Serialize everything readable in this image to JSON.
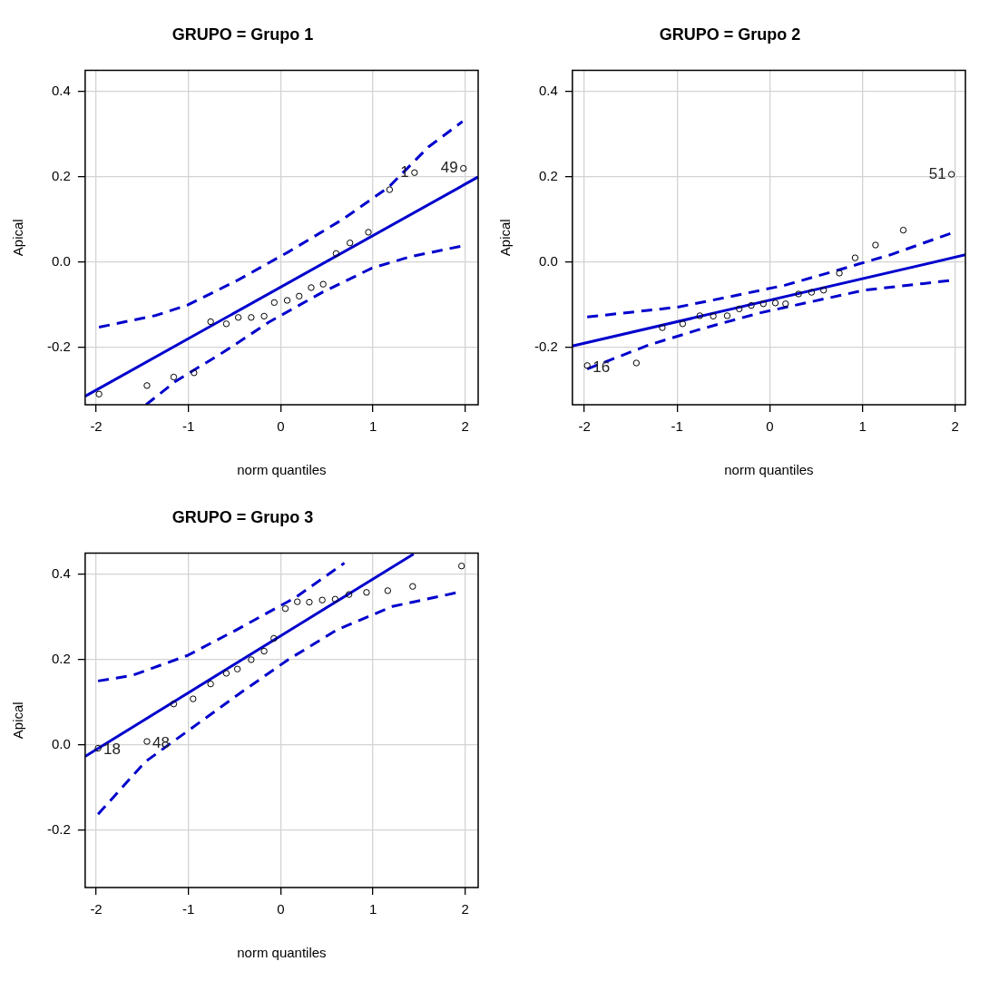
{
  "chart_data": [
    {
      "type": "scatter",
      "title": "GRUPO = Grupo 1",
      "xlabel": "norm quantiles",
      "ylabel": "Apical",
      "xlim": [
        -2.12,
        2.14
      ],
      "ylim": [
        -0.335,
        0.45
      ],
      "xticks": [
        -2,
        -1,
        0,
        1,
        2
      ],
      "yticks": [
        {
          "value": -0.2,
          "label": "-0.2"
        },
        {
          "value": 0,
          "label": "0.0"
        },
        {
          "value": 0.2,
          "label": "0.2"
        },
        {
          "value": 0.4,
          "label": "0.4"
        }
      ],
      "grid": true,
      "marker": "circle",
      "series": [
        {
          "type": "scatter",
          "color": "#000000",
          "x": [
            -1.97,
            -1.45,
            -1.16,
            -0.94,
            -0.76,
            -0.59,
            -0.46,
            -0.32,
            -0.18,
            -0.07,
            0.07,
            0.2,
            0.33,
            0.46,
            0.6,
            0.75,
            0.95,
            1.18,
            1.45,
            1.98
          ],
          "values": [
            -0.31,
            -0.29,
            -0.27,
            -0.26,
            -0.14,
            -0.145,
            -0.13,
            -0.13,
            -0.127,
            -0.095,
            -0.09,
            -0.08,
            -0.06,
            -0.052,
            0.02,
            0.045,
            0.07,
            0.17,
            0.21,
            0.22
          ]
        },
        {
          "type": "line",
          "color": "#0000cd",
          "line_style": "solid",
          "marker": "none",
          "x": [
            -2.12,
            2.14
          ],
          "values": [
            -0.315,
            0.2
          ]
        },
        {
          "type": "line",
          "color": "#0000cd",
          "line_style": "dashed",
          "marker": "none",
          "x": [
            -1.97,
            -1.35,
            -1.0,
            -0.47,
            0.1,
            0.67,
            1.17,
            1.6,
            1.97
          ],
          "values": [
            -0.153,
            -0.125,
            -0.1,
            -0.043,
            0.026,
            0.1,
            0.176,
            0.27,
            0.33
          ]
        },
        {
          "type": "line",
          "color": "#0000cd",
          "line_style": "dashed",
          "marker": "none",
          "x": [
            -1.46,
            -1.14,
            -0.61,
            -0.12,
            0.46,
            0.99,
            1.41,
            1.97
          ],
          "values": [
            -0.335,
            -0.28,
            -0.21,
            -0.14,
            -0.07,
            -0.014,
            0.013,
            0.038
          ]
        }
      ],
      "annotations": [
        {
          "text": "1",
          "x": 1.45,
          "y": 0.21
        },
        {
          "text": "49",
          "x": 1.98,
          "y": 0.22
        }
      ]
    },
    {
      "type": "scatter",
      "title": "GRUPO = Grupo 2",
      "xlabel": "norm quantiles",
      "ylabel": "Apical",
      "xlim": [
        -2.13,
        2.11
      ],
      "ylim": [
        -0.335,
        0.45
      ],
      "xticks": [
        -2,
        -1,
        0,
        1,
        2
      ],
      "yticks": [
        {
          "value": -0.2,
          "label": "-0.2"
        },
        {
          "value": 0,
          "label": "0.0"
        },
        {
          "value": 0.2,
          "label": "0.2"
        },
        {
          "value": 0.4,
          "label": "0.4"
        }
      ],
      "grid": true,
      "marker": "circle",
      "series": [
        {
          "type": "scatter",
          "color": "#000000",
          "x": [
            -1.97,
            -1.44,
            -1.16,
            -0.94,
            -0.755,
            -0.61,
            -0.46,
            -0.33,
            -0.2,
            -0.07,
            0.06,
            0.17,
            0.31,
            0.45,
            0.58,
            0.75,
            0.92,
            1.14,
            1.44,
            1.96
          ],
          "values": [
            -0.243,
            -0.237,
            -0.154,
            -0.145,
            -0.126,
            -0.127,
            -0.126,
            -0.11,
            -0.102,
            -0.098,
            -0.096,
            -0.098,
            -0.075,
            -0.071,
            -0.066,
            -0.026,
            0.01,
            0.04,
            0.075,
            0.206
          ]
        },
        {
          "type": "line",
          "color": "#0000cd",
          "line_style": "solid",
          "marker": "none",
          "x": [
            -2.13,
            2.11
          ],
          "values": [
            -0.197,
            0.017
          ]
        },
        {
          "type": "line",
          "color": "#0000cd",
          "line_style": "dashed",
          "marker": "none",
          "x": [
            -1.97,
            -1.0,
            -0.47,
            0.17,
            0.75,
            1.3,
            1.96
          ],
          "values": [
            -0.129,
            -0.106,
            -0.083,
            -0.054,
            -0.018,
            0.017,
            0.068
          ]
        },
        {
          "type": "line",
          "color": "#0000cd",
          "line_style": "dashed",
          "marker": "none",
          "x": [
            -1.97,
            -1.31,
            -0.755,
            -0.12,
            0.45,
            1.02,
            1.96
          ],
          "values": [
            -0.251,
            -0.195,
            -0.158,
            -0.12,
            -0.093,
            -0.066,
            -0.043
          ]
        }
      ],
      "annotations": [
        {
          "text": "16",
          "x": -1.97,
          "y": -0.243
        },
        {
          "text": "51",
          "x": 1.96,
          "y": 0.206
        }
      ]
    },
    {
      "type": "scatter",
      "title": "GRUPO = Grupo 3",
      "xlabel": "norm quantiles",
      "ylabel": "Apical",
      "xlim": [
        -2.12,
        2.14
      ],
      "ylim": [
        -0.335,
        0.45
      ],
      "xticks": [
        -2,
        -1,
        0,
        1,
        2
      ],
      "yticks": [
        {
          "value": -0.2,
          "label": "-0.2"
        },
        {
          "value": 0,
          "label": "0.0"
        },
        {
          "value": 0.2,
          "label": "0.2"
        },
        {
          "value": 0.4,
          "label": "0.4"
        }
      ],
      "grid": true,
      "marker": "circle",
      "series": [
        {
          "type": "scatter",
          "color": "#000000",
          "x": [
            -1.98,
            -1.45,
            -1.16,
            -0.95,
            -0.76,
            -0.59,
            -0.47,
            -0.32,
            -0.18,
            -0.075,
            0.05,
            0.18,
            0.31,
            0.45,
            0.59,
            0.74,
            0.93,
            1.16,
            1.43,
            1.96
          ],
          "values": [
            -0.008,
            0.008,
            0.096,
            0.108,
            0.143,
            0.168,
            0.178,
            0.2,
            0.22,
            0.25,
            0.32,
            0.336,
            0.335,
            0.34,
            0.342,
            0.353,
            0.358,
            0.362,
            0.372,
            0.42
          ]
        },
        {
          "type": "line",
          "color": "#0000cd",
          "line_style": "solid",
          "marker": "none",
          "x": [
            -2.12,
            1.44
          ],
          "values": [
            -0.027,
            0.448
          ]
        },
        {
          "type": "line",
          "color": "#0000cd",
          "line_style": "dashed",
          "marker": "none",
          "x": [
            -1.98,
            -1.61,
            -1.01,
            -0.48,
            0.16,
            0.69
          ],
          "values": [
            0.15,
            0.163,
            0.21,
            0.27,
            0.346,
            0.427
          ]
        },
        {
          "type": "line",
          "color": "#0000cd",
          "line_style": "dashed",
          "marker": "none",
          "x": [
            -1.98,
            -1.47,
            -0.98,
            -0.45,
            0.08,
            0.61,
            1.21,
            1.9
          ],
          "values": [
            -0.163,
            -0.04,
            0.037,
            0.12,
            0.2,
            0.27,
            0.325,
            0.357
          ]
        }
      ],
      "annotations": [
        {
          "text": "18",
          "x": -1.98,
          "y": -0.008
        },
        {
          "text": "48",
          "x": -1.45,
          "y": 0.008
        }
      ]
    }
  ]
}
